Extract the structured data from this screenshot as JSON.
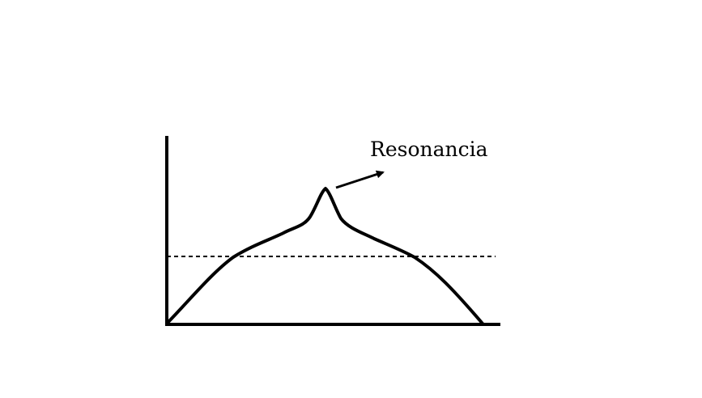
{
  "diagram": {
    "annotation": "Resonancia",
    "colors": {
      "stroke": "#000000",
      "background": "#ffffff"
    },
    "elements": [
      "y-axis",
      "x-axis",
      "response-curve",
      "threshold-line",
      "resonance-arrow"
    ]
  }
}
